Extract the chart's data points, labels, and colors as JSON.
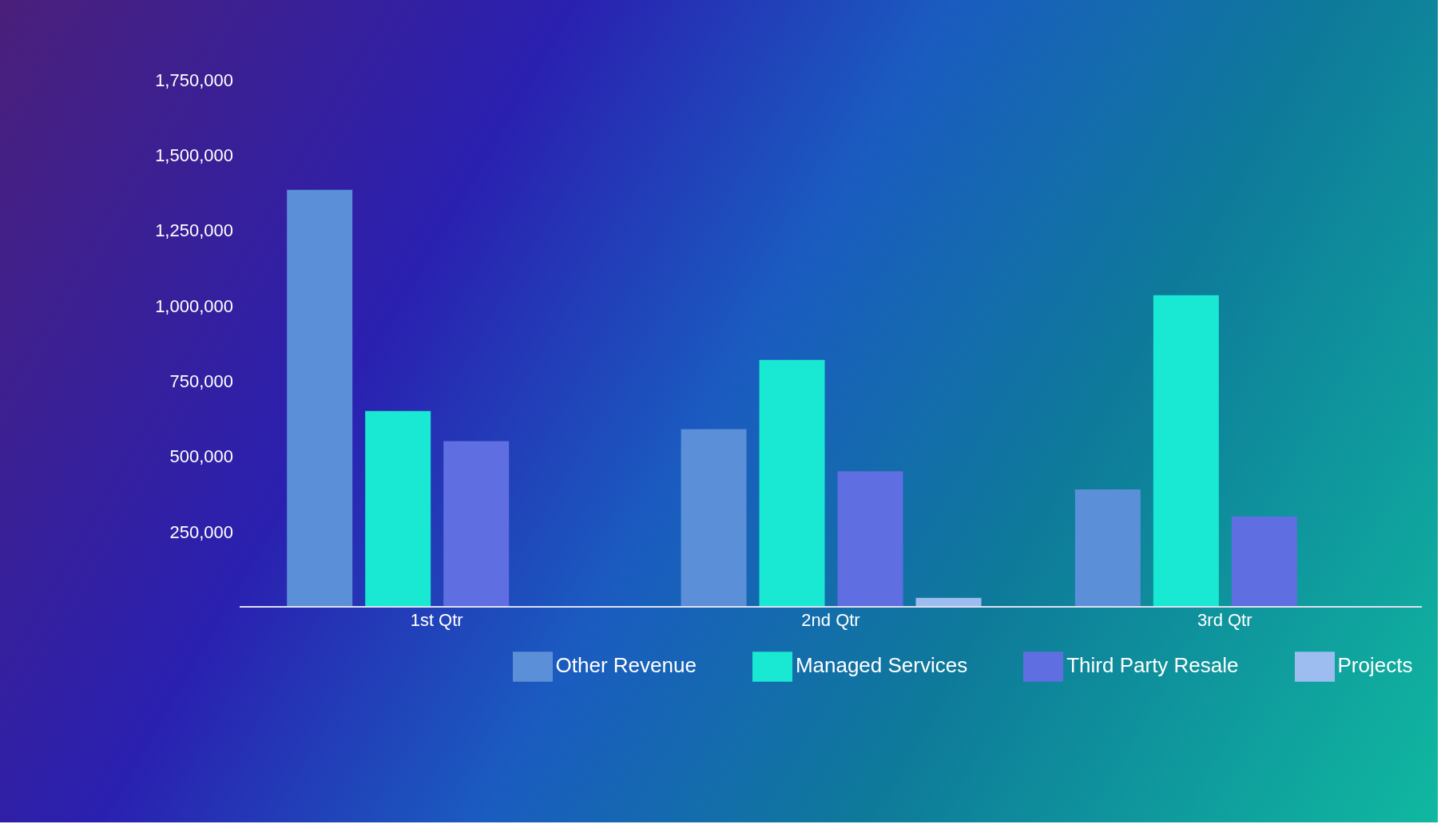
{
  "chart_data": {
    "type": "bar",
    "categories": [
      "1st Qtr",
      "2nd Qtr",
      "3rd Qtr"
    ],
    "series": [
      {
        "name": "Other Revenue",
        "color": "#5b8fd8",
        "values": [
          1385000,
          590000,
          390000
        ]
      },
      {
        "name": "Managed Services",
        "color": "#19e8d2",
        "values": [
          650000,
          820000,
          1035000
        ]
      },
      {
        "name": "Third Party Resale",
        "color": "#5f6ee0",
        "values": [
          550000,
          450000,
          300000
        ]
      },
      {
        "name": "Projects",
        "color": "#9dbcf0",
        "values": [
          null,
          30000,
          null
        ]
      }
    ],
    "ylim": [
      0,
      1750000
    ],
    "yticks": [
      {
        "value": 250000,
        "label": "250,000"
      },
      {
        "value": 500000,
        "label": "500,000"
      },
      {
        "value": 750000,
        "label": "750,000"
      },
      {
        "value": 1000000,
        "label": "1,000,000"
      },
      {
        "value": 1250000,
        "label": "1,250,000"
      },
      {
        "value": 1500000,
        "label": "1,500,000"
      },
      {
        "value": 1750000,
        "label": "1,750,000"
      }
    ],
    "grid": false,
    "legend": "bottom"
  }
}
